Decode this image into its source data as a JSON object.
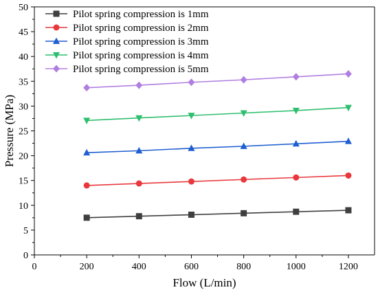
{
  "chart_data": {
    "type": "line",
    "title": "",
    "xlabel": "Flow (L/min)",
    "ylabel": "Pressure (MPa)",
    "xlim": [
      0,
      1300
    ],
    "ylim": [
      0,
      50
    ],
    "x_ticks": [
      0,
      200,
      400,
      600,
      800,
      1000,
      1200
    ],
    "y_ticks": [
      0,
      5,
      10,
      15,
      20,
      25,
      30,
      35,
      40,
      45,
      50
    ],
    "x_tick_labels": [
      "0",
      "200",
      "400",
      "600",
      "800",
      "1000",
      "1200"
    ],
    "y_tick_labels": [
      "0",
      "5",
      "10",
      "15",
      "20",
      "25",
      "30",
      "35",
      "40",
      "45",
      "50"
    ],
    "grid": false,
    "legend_position": "top-left",
    "x": [
      200,
      400,
      600,
      800,
      1000,
      1200
    ],
    "series": [
      {
        "name": "Pilot spring compression is 1mm",
        "values": [
          7.5,
          7.8,
          8.1,
          8.4,
          8.7,
          9.0
        ],
        "color": "#3f3f3f",
        "marker": "square"
      },
      {
        "name": "Pilot spring compression is 2mm",
        "values": [
          14.0,
          14.4,
          14.8,
          15.2,
          15.6,
          16.0
        ],
        "color": "#e8383d",
        "marker": "circle"
      },
      {
        "name": "Pilot spring compression is 3mm",
        "values": [
          20.6,
          21.0,
          21.5,
          21.9,
          22.4,
          22.9
        ],
        "color": "#1f5fd1",
        "marker": "triangle-up"
      },
      {
        "name": "Pilot spring compression is 4mm",
        "values": [
          27.1,
          27.6,
          28.1,
          28.6,
          29.1,
          29.7
        ],
        "color": "#2fbe6e",
        "marker": "triangle-down"
      },
      {
        "name": "Pilot spring compression is 5mm",
        "values": [
          33.7,
          34.2,
          34.8,
          35.3,
          35.9,
          36.5
        ],
        "color": "#b07ee0",
        "marker": "diamond"
      }
    ]
  }
}
